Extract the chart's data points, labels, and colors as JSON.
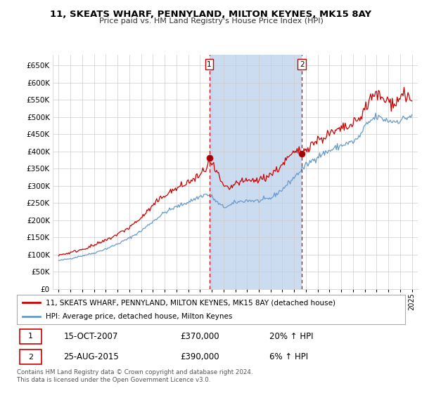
{
  "title": "11, SKEATS WHARF, PENNYLAND, MILTON KEYNES, MK15 8AY",
  "subtitle": "Price paid vs. HM Land Registry's House Price Index (HPI)",
  "background_color": "#ffffff",
  "plot_bg_color": "#ffffff",
  "red_line_label": "11, SKEATS WHARF, PENNYLAND, MILTON KEYNES, MK15 8AY (detached house)",
  "blue_line_label": "HPI: Average price, detached house, Milton Keynes",
  "sale1_date": "15-OCT-2007",
  "sale1_price": "£370,000",
  "sale1_hpi": "20% ↑ HPI",
  "sale2_date": "25-AUG-2015",
  "sale2_price": "£390,000",
  "sale2_hpi": "6% ↑ HPI",
  "footer": "Contains HM Land Registry data © Crown copyright and database right 2024.\nThis data is licensed under the Open Government Licence v3.0.",
  "ylim_min": 0,
  "ylim_max": 680000,
  "yticks": [
    0,
    50000,
    100000,
    150000,
    200000,
    250000,
    300000,
    350000,
    400000,
    450000,
    500000,
    550000,
    600000,
    650000
  ],
  "sale1_x": 2007.79,
  "sale2_x": 2015.65,
  "xmin": 1994.5,
  "xmax": 2025.5,
  "highlight_color": "#ccdcf0",
  "grid_color": "#cccccc",
  "dashed_color": "#cc0000",
  "red_color": "#cc0000",
  "blue_color": "#6699cc"
}
